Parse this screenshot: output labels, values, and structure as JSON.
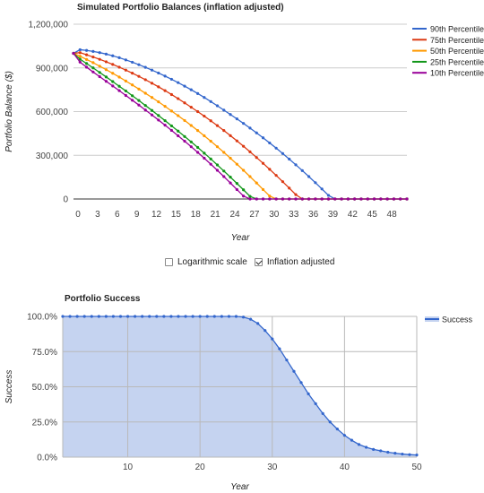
{
  "controls": {
    "log_label": "Logarithmic scale",
    "log_checked": false,
    "infl_label": "Inflation adjusted",
    "infl_checked": true
  },
  "chart_data": [
    {
      "type": "line",
      "title": "Simulated Portfolio Balances (inflation adjusted)",
      "xlabel": "Year",
      "ylabel": "Portfolio Balance ($)",
      "xlim": [
        0,
        51
      ],
      "ylim": [
        0,
        1200000
      ],
      "xticks": [
        "0",
        "3",
        "6",
        "9",
        "12",
        "15",
        "18",
        "21",
        "24",
        "27",
        "30",
        "33",
        "36",
        "39",
        "42",
        "45",
        "48"
      ],
      "yticks": [
        "0",
        "300,000",
        "600,000",
        "900,000",
        "1,200,000"
      ],
      "grid": true,
      "legend": "right",
      "series": [
        {
          "name": "90th Percentile",
          "color": "#3366cc",
          "values": [
            1000000,
            1025000,
            1020000,
            1013000,
            1005000,
            995000,
            983000,
            970000,
            955000,
            939000,
            922000,
            904000,
            885000,
            865000,
            844000,
            822000,
            799000,
            775000,
            750000,
            724000,
            697000,
            669000,
            640000,
            610000,
            580000,
            550000,
            519000,
            487000,
            454000,
            420000,
            385000,
            349000,
            312000,
            274000,
            235000,
            195000,
            154000,
            112000,
            69000,
            25000,
            0,
            0,
            0,
            0,
            0,
            0,
            0,
            0,
            0,
            0,
            0,
            0
          ]
        },
        {
          "name": "75th Percentile",
          "color": "#dc3912",
          "values": [
            1000000,
            1005000,
            990000,
            975000,
            959000,
            942000,
            924000,
            905000,
            885000,
            864000,
            842000,
            819000,
            795000,
            770000,
            744000,
            717000,
            689000,
            660000,
            630000,
            600000,
            569000,
            537000,
            504000,
            470000,
            435000,
            399000,
            362000,
            324000,
            285000,
            245000,
            204000,
            162000,
            119000,
            75000,
            30000,
            0,
            0,
            0,
            0,
            0,
            0,
            0,
            0,
            0,
            0,
            0,
            0,
            0,
            0,
            0,
            0,
            0
          ]
        },
        {
          "name": "50th Percentile",
          "color": "#ff9900",
          "values": [
            1000000,
            980000,
            958000,
            936000,
            912000,
            888000,
            863000,
            837000,
            810000,
            783000,
            755000,
            726000,
            697000,
            667000,
            636000,
            604000,
            572000,
            539000,
            505000,
            470000,
            434000,
            397000,
            359000,
            320000,
            280000,
            239000,
            197000,
            154000,
            110000,
            65000,
            20000,
            0,
            0,
            0,
            0,
            0,
            0,
            0,
            0,
            0,
            0,
            0,
            0,
            0,
            0,
            0,
            0,
            0,
            0,
            0,
            0,
            0
          ]
        },
        {
          "name": "25th Percentile",
          "color": "#109618",
          "values": [
            1000000,
            960000,
            930000,
            900000,
            869000,
            838000,
            806000,
            774000,
            742000,
            709000,
            676000,
            642000,
            608000,
            573000,
            538000,
            502000,
            466000,
            429000,
            392000,
            354000,
            315000,
            275000,
            234000,
            192000,
            150000,
            107000,
            63000,
            18000,
            0,
            0,
            0,
            0,
            0,
            0,
            0,
            0,
            0,
            0,
            0,
            0,
            0,
            0,
            0,
            0,
            0,
            0,
            0,
            0,
            0,
            0,
            0,
            0
          ]
        },
        {
          "name": "10th Percentile",
          "color": "#990099",
          "values": [
            1000000,
            940000,
            905000,
            872000,
            840000,
            808000,
            776000,
            744000,
            711000,
            678000,
            645000,
            611000,
            577000,
            542000,
            507000,
            471000,
            434000,
            397000,
            359000,
            320000,
            280000,
            239000,
            197000,
            154000,
            110000,
            65000,
            20000,
            0,
            0,
            0,
            0,
            0,
            0,
            0,
            0,
            0,
            0,
            0,
            0,
            0,
            0,
            0,
            0,
            0,
            0,
            0,
            0,
            0,
            0,
            0,
            0,
            0
          ]
        }
      ]
    },
    {
      "type": "area",
      "title": "Portfolio Success",
      "xlabel": "Year",
      "ylabel": "Success",
      "xlim": [
        1,
        50
      ],
      "ylim": [
        0,
        100
      ],
      "xticks": [
        "10",
        "20",
        "30",
        "40",
        "50"
      ],
      "yticks": [
        "0.0%",
        "25.0%",
        "50.0%",
        "75.0%",
        "100.0%"
      ],
      "grid": true,
      "legend": "right",
      "series": [
        {
          "name": "Success",
          "color": "#3366cc",
          "fill": "#c5d3f0",
          "x": [
            1,
            2,
            3,
            4,
            5,
            6,
            7,
            8,
            9,
            10,
            11,
            12,
            13,
            14,
            15,
            16,
            17,
            18,
            19,
            20,
            21,
            22,
            23,
            24,
            25,
            26,
            27,
            28,
            29,
            30,
            31,
            32,
            33,
            34,
            35,
            36,
            37,
            38,
            39,
            40,
            41,
            42,
            43,
            44,
            45,
            46,
            47,
            48,
            49,
            50
          ],
          "values": [
            100,
            100,
            100,
            100,
            100,
            100,
            100,
            100,
            100,
            100,
            100,
            100,
            100,
            100,
            100,
            100,
            100,
            100,
            100,
            100,
            100,
            100,
            100,
            100,
            100,
            99.5,
            98,
            95,
            90,
            84,
            77,
            69,
            61,
            53,
            45,
            38,
            31,
            25,
            20,
            15.5,
            12,
            9,
            7,
            5.5,
            4.5,
            3.5,
            2.8,
            2.2,
            1.8,
            1.5
          ]
        }
      ]
    }
  ]
}
